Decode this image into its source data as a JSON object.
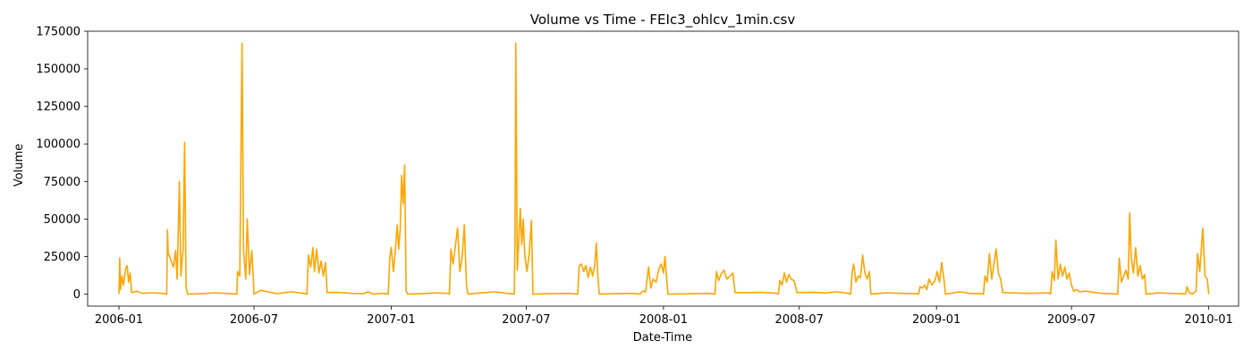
{
  "chart_data": {
    "type": "line",
    "title": "Volume vs Time - FEIc3_ohlcv_1min.csv",
    "xlabel": "Date-Time",
    "ylabel": "Volume",
    "x_range": [
      "2005-11-20",
      "2010-02-10"
    ],
    "ylim": [
      -8000,
      175000
    ],
    "y_ticks": [
      0,
      25000,
      50000,
      75000,
      100000,
      125000,
      150000,
      175000
    ],
    "x_ticks": [
      {
        "date": "2006-01-01",
        "label": "2006-01"
      },
      {
        "date": "2006-07-01",
        "label": "2006-07"
      },
      {
        "date": "2007-01-01",
        "label": "2007-01"
      },
      {
        "date": "2007-07-01",
        "label": "2007-07"
      },
      {
        "date": "2008-01-01",
        "label": "2008-01"
      },
      {
        "date": "2008-07-01",
        "label": "2008-07"
      },
      {
        "date": "2009-01-01",
        "label": "2009-01"
      },
      {
        "date": "2009-07-01",
        "label": "2009-07"
      },
      {
        "date": "2010-01-01",
        "label": "2010-01"
      }
    ],
    "grid": false,
    "line_color": "#FFA500",
    "series": [
      {
        "name": "",
        "points": [
          [
            "2006-01-01",
            0
          ],
          [
            "2006-01-02",
            24000
          ],
          [
            "2006-01-03",
            3000
          ],
          [
            "2006-01-05",
            12000
          ],
          [
            "2006-01-07",
            6000
          ],
          [
            "2006-01-10",
            17000
          ],
          [
            "2006-01-12",
            19000
          ],
          [
            "2006-01-14",
            8000
          ],
          [
            "2006-01-16",
            14000
          ],
          [
            "2006-01-18",
            1000
          ],
          [
            "2006-01-25",
            2000
          ],
          [
            "2006-02-01",
            500
          ],
          [
            "2006-02-15",
            800
          ],
          [
            "2006-03-01",
            500
          ],
          [
            "2006-03-06",
            0
          ],
          [
            "2006-03-07",
            43000
          ],
          [
            "2006-03-08",
            27000
          ],
          [
            "2006-03-10",
            25000
          ],
          [
            "2006-03-12",
            22000
          ],
          [
            "2006-03-15",
            18000
          ],
          [
            "2006-03-18",
            29000
          ],
          [
            "2006-03-20",
            10000
          ],
          [
            "2006-03-23",
            75000
          ],
          [
            "2006-03-25",
            12000
          ],
          [
            "2006-03-28",
            30000
          ],
          [
            "2006-03-30",
            101000
          ],
          [
            "2006-04-01",
            5000
          ],
          [
            "2006-04-03",
            0
          ],
          [
            "2006-04-20",
            300
          ],
          [
            "2006-05-10",
            800
          ],
          [
            "2006-06-01",
            300
          ],
          [
            "2006-06-08",
            0
          ],
          [
            "2006-06-09",
            15000
          ],
          [
            "2006-06-12",
            12000
          ],
          [
            "2006-06-15",
            167000
          ],
          [
            "2006-06-17",
            30000
          ],
          [
            "2006-06-20",
            10000
          ],
          [
            "2006-06-22",
            50000
          ],
          [
            "2006-06-25",
            13000
          ],
          [
            "2006-06-28",
            29000
          ],
          [
            "2006-06-30",
            12000
          ],
          [
            "2006-07-01",
            0
          ],
          [
            "2006-07-10",
            2500
          ],
          [
            "2006-07-20",
            1500
          ],
          [
            "2006-08-01",
            300
          ],
          [
            "2006-08-20",
            1500
          ],
          [
            "2006-09-05",
            500
          ],
          [
            "2006-09-10",
            0
          ],
          [
            "2006-09-12",
            26000
          ],
          [
            "2006-09-15",
            18000
          ],
          [
            "2006-09-18",
            31000
          ],
          [
            "2006-09-20",
            15000
          ],
          [
            "2006-09-23",
            30000
          ],
          [
            "2006-09-26",
            14000
          ],
          [
            "2006-09-29",
            22000
          ],
          [
            "2006-10-02",
            12000
          ],
          [
            "2006-10-05",
            21000
          ],
          [
            "2006-10-07",
            1000
          ],
          [
            "2006-10-20",
            1200
          ],
          [
            "2006-11-10",
            500
          ],
          [
            "2006-11-25",
            300
          ],
          [
            "2006-12-01",
            1500
          ],
          [
            "2006-12-08",
            0
          ],
          [
            "2006-12-20",
            500
          ],
          [
            "2006-12-28",
            0
          ],
          [
            "2006-12-30",
            24000
          ],
          [
            "2007-01-01",
            31000
          ],
          [
            "2007-01-04",
            15000
          ],
          [
            "2007-01-06",
            26000
          ],
          [
            "2007-01-09",
            46000
          ],
          [
            "2007-01-11",
            30000
          ],
          [
            "2007-01-13",
            43000
          ],
          [
            "2007-01-15",
            79000
          ],
          [
            "2007-01-17",
            60000
          ],
          [
            "2007-01-19",
            86000
          ],
          [
            "2007-01-21",
            2000
          ],
          [
            "2007-01-23",
            0
          ],
          [
            "2007-02-10",
            300
          ],
          [
            "2007-03-01",
            800
          ],
          [
            "2007-03-18",
            500
          ],
          [
            "2007-03-20",
            0
          ],
          [
            "2007-03-22",
            30000
          ],
          [
            "2007-03-25",
            20000
          ],
          [
            "2007-03-28",
            32000
          ],
          [
            "2007-03-31",
            44000
          ],
          [
            "2007-04-03",
            15000
          ],
          [
            "2007-04-06",
            24000
          ],
          [
            "2007-04-09",
            46000
          ],
          [
            "2007-04-12",
            5000
          ],
          [
            "2007-04-14",
            0
          ],
          [
            "2007-05-01",
            800
          ],
          [
            "2007-05-20",
            1500
          ],
          [
            "2007-06-05",
            500
          ],
          [
            "2007-06-15",
            0
          ],
          [
            "2007-06-16",
            40000
          ],
          [
            "2007-06-17",
            167000
          ],
          [
            "2007-06-19",
            16000
          ],
          [
            "2007-06-21",
            35000
          ],
          [
            "2007-06-23",
            57000
          ],
          [
            "2007-06-25",
            33000
          ],
          [
            "2007-06-27",
            50000
          ],
          [
            "2007-06-29",
            26000
          ],
          [
            "2007-07-02",
            15000
          ],
          [
            "2007-07-05",
            27000
          ],
          [
            "2007-07-08",
            49000
          ],
          [
            "2007-07-10",
            0
          ],
          [
            "2007-08-01",
            300
          ],
          [
            "2007-08-25",
            500
          ],
          [
            "2007-09-08",
            0
          ],
          [
            "2007-09-10",
            19000
          ],
          [
            "2007-09-13",
            20000
          ],
          [
            "2007-09-16",
            15000
          ],
          [
            "2007-09-19",
            19000
          ],
          [
            "2007-09-22",
            11000
          ],
          [
            "2007-09-25",
            18000
          ],
          [
            "2007-09-28",
            12000
          ],
          [
            "2007-10-01",
            20000
          ],
          [
            "2007-10-03",
            34000
          ],
          [
            "2007-10-05",
            12000
          ],
          [
            "2007-10-07",
            0
          ],
          [
            "2007-10-25",
            300
          ],
          [
            "2007-11-20",
            500
          ],
          [
            "2007-12-01",
            0
          ],
          [
            "2007-12-04",
            2000
          ],
          [
            "2007-12-08",
            1500
          ],
          [
            "2007-12-12",
            18000
          ],
          [
            "2007-12-15",
            4000
          ],
          [
            "2007-12-18",
            10000
          ],
          [
            "2007-12-22",
            8000
          ],
          [
            "2007-12-26",
            17000
          ],
          [
            "2007-12-29",
            20000
          ],
          [
            "2008-01-01",
            14000
          ],
          [
            "2008-01-03",
            25000
          ],
          [
            "2008-01-05",
            12000
          ],
          [
            "2008-01-07",
            0
          ],
          [
            "2008-02-10",
            300
          ],
          [
            "2008-03-01",
            500
          ],
          [
            "2008-03-10",
            0
          ],
          [
            "2008-03-12",
            15000
          ],
          [
            "2008-03-15",
            9000
          ],
          [
            "2008-03-18",
            13000
          ],
          [
            "2008-03-22",
            16000
          ],
          [
            "2008-03-26",
            10000
          ],
          [
            "2008-03-30",
            12000
          ],
          [
            "2008-04-03",
            14000
          ],
          [
            "2008-04-06",
            1000
          ],
          [
            "2008-05-01",
            1000
          ],
          [
            "2008-05-10",
            1200
          ],
          [
            "2008-05-25",
            800
          ],
          [
            "2008-06-01",
            500
          ],
          [
            "2008-06-03",
            0
          ],
          [
            "2008-06-05",
            9000
          ],
          [
            "2008-06-08",
            6000
          ],
          [
            "2008-06-11",
            14000
          ],
          [
            "2008-06-14",
            8000
          ],
          [
            "2008-06-17",
            13000
          ],
          [
            "2008-06-20",
            10000
          ],
          [
            "2008-06-24",
            9000
          ],
          [
            "2008-06-28",
            1000
          ],
          [
            "2008-07-20",
            1200
          ],
          [
            "2008-08-05",
            800
          ],
          [
            "2008-08-20",
            1500
          ],
          [
            "2008-09-05",
            500
          ],
          [
            "2008-09-08",
            0
          ],
          [
            "2008-09-10",
            15000
          ],
          [
            "2008-09-12",
            20000
          ],
          [
            "2008-09-15",
            8000
          ],
          [
            "2008-09-18",
            12000
          ],
          [
            "2008-09-21",
            11000
          ],
          [
            "2008-09-24",
            26000
          ],
          [
            "2008-09-27",
            14000
          ],
          [
            "2008-09-30",
            10000
          ],
          [
            "2008-10-03",
            15000
          ],
          [
            "2008-10-05",
            0
          ],
          [
            "2008-10-25",
            800
          ],
          [
            "2008-11-15",
            500
          ],
          [
            "2008-12-05",
            300
          ],
          [
            "2008-12-08",
            0
          ],
          [
            "2008-12-10",
            5000
          ],
          [
            "2008-12-13",
            4000
          ],
          [
            "2008-12-16",
            6000
          ],
          [
            "2008-12-19",
            3000
          ],
          [
            "2008-12-22",
            10000
          ],
          [
            "2008-12-26",
            6000
          ],
          [
            "2008-12-30",
            9000
          ],
          [
            "2009-01-02",
            15000
          ],
          [
            "2009-01-05",
            8000
          ],
          [
            "2009-01-08",
            21000
          ],
          [
            "2009-01-11",
            10000
          ],
          [
            "2009-01-13",
            0
          ],
          [
            "2009-02-01",
            1500
          ],
          [
            "2009-02-15",
            500
          ],
          [
            "2009-03-01",
            300
          ],
          [
            "2009-03-05",
            0
          ],
          [
            "2009-03-07",
            12000
          ],
          [
            "2009-03-10",
            8000
          ],
          [
            "2009-03-13",
            27000
          ],
          [
            "2009-03-16",
            10000
          ],
          [
            "2009-03-19",
            20000
          ],
          [
            "2009-03-22",
            30000
          ],
          [
            "2009-03-25",
            14000
          ],
          [
            "2009-03-28",
            10000
          ],
          [
            "2009-03-31",
            1000
          ],
          [
            "2009-05-01",
            500
          ],
          [
            "2009-06-01",
            800
          ],
          [
            "2009-06-03",
            0
          ],
          [
            "2009-06-05",
            15000
          ],
          [
            "2009-06-08",
            9000
          ],
          [
            "2009-06-10",
            36000
          ],
          [
            "2009-06-13",
            10000
          ],
          [
            "2009-06-16",
            20000
          ],
          [
            "2009-06-19",
            12000
          ],
          [
            "2009-06-22",
            18000
          ],
          [
            "2009-06-25",
            10000
          ],
          [
            "2009-06-28",
            14000
          ],
          [
            "2009-07-01",
            6000
          ],
          [
            "2009-07-04",
            2000
          ],
          [
            "2009-07-08",
            3000
          ],
          [
            "2009-07-12",
            1500
          ],
          [
            "2009-07-20",
            2000
          ],
          [
            "2009-08-01",
            1000
          ],
          [
            "2009-08-10",
            500
          ],
          [
            "2009-08-25",
            300
          ],
          [
            "2009-09-01",
            0
          ],
          [
            "2009-09-03",
            24000
          ],
          [
            "2009-09-06",
            8000
          ],
          [
            "2009-09-09",
            12000
          ],
          [
            "2009-09-12",
            16000
          ],
          [
            "2009-09-15",
            10000
          ],
          [
            "2009-09-17",
            54000
          ],
          [
            "2009-09-19",
            25000
          ],
          [
            "2009-09-22",
            14000
          ],
          [
            "2009-09-25",
            31000
          ],
          [
            "2009-09-28",
            12000
          ],
          [
            "2009-10-01",
            19000
          ],
          [
            "2009-10-04",
            10000
          ],
          [
            "2009-10-07",
            13000
          ],
          [
            "2009-10-09",
            0
          ],
          [
            "2009-10-25",
            800
          ],
          [
            "2009-11-10",
            500
          ],
          [
            "2009-11-25",
            300
          ],
          [
            "2009-12-01",
            0
          ],
          [
            "2009-12-03",
            5000
          ],
          [
            "2009-12-06",
            1000
          ],
          [
            "2009-12-10",
            0
          ],
          [
            "2009-12-15",
            2000
          ],
          [
            "2009-12-17",
            27000
          ],
          [
            "2009-12-20",
            15000
          ],
          [
            "2009-12-24",
            44000
          ],
          [
            "2009-12-27",
            12000
          ],
          [
            "2009-12-30",
            10000
          ],
          [
            "2010-01-01",
            0
          ]
        ]
      }
    ]
  }
}
